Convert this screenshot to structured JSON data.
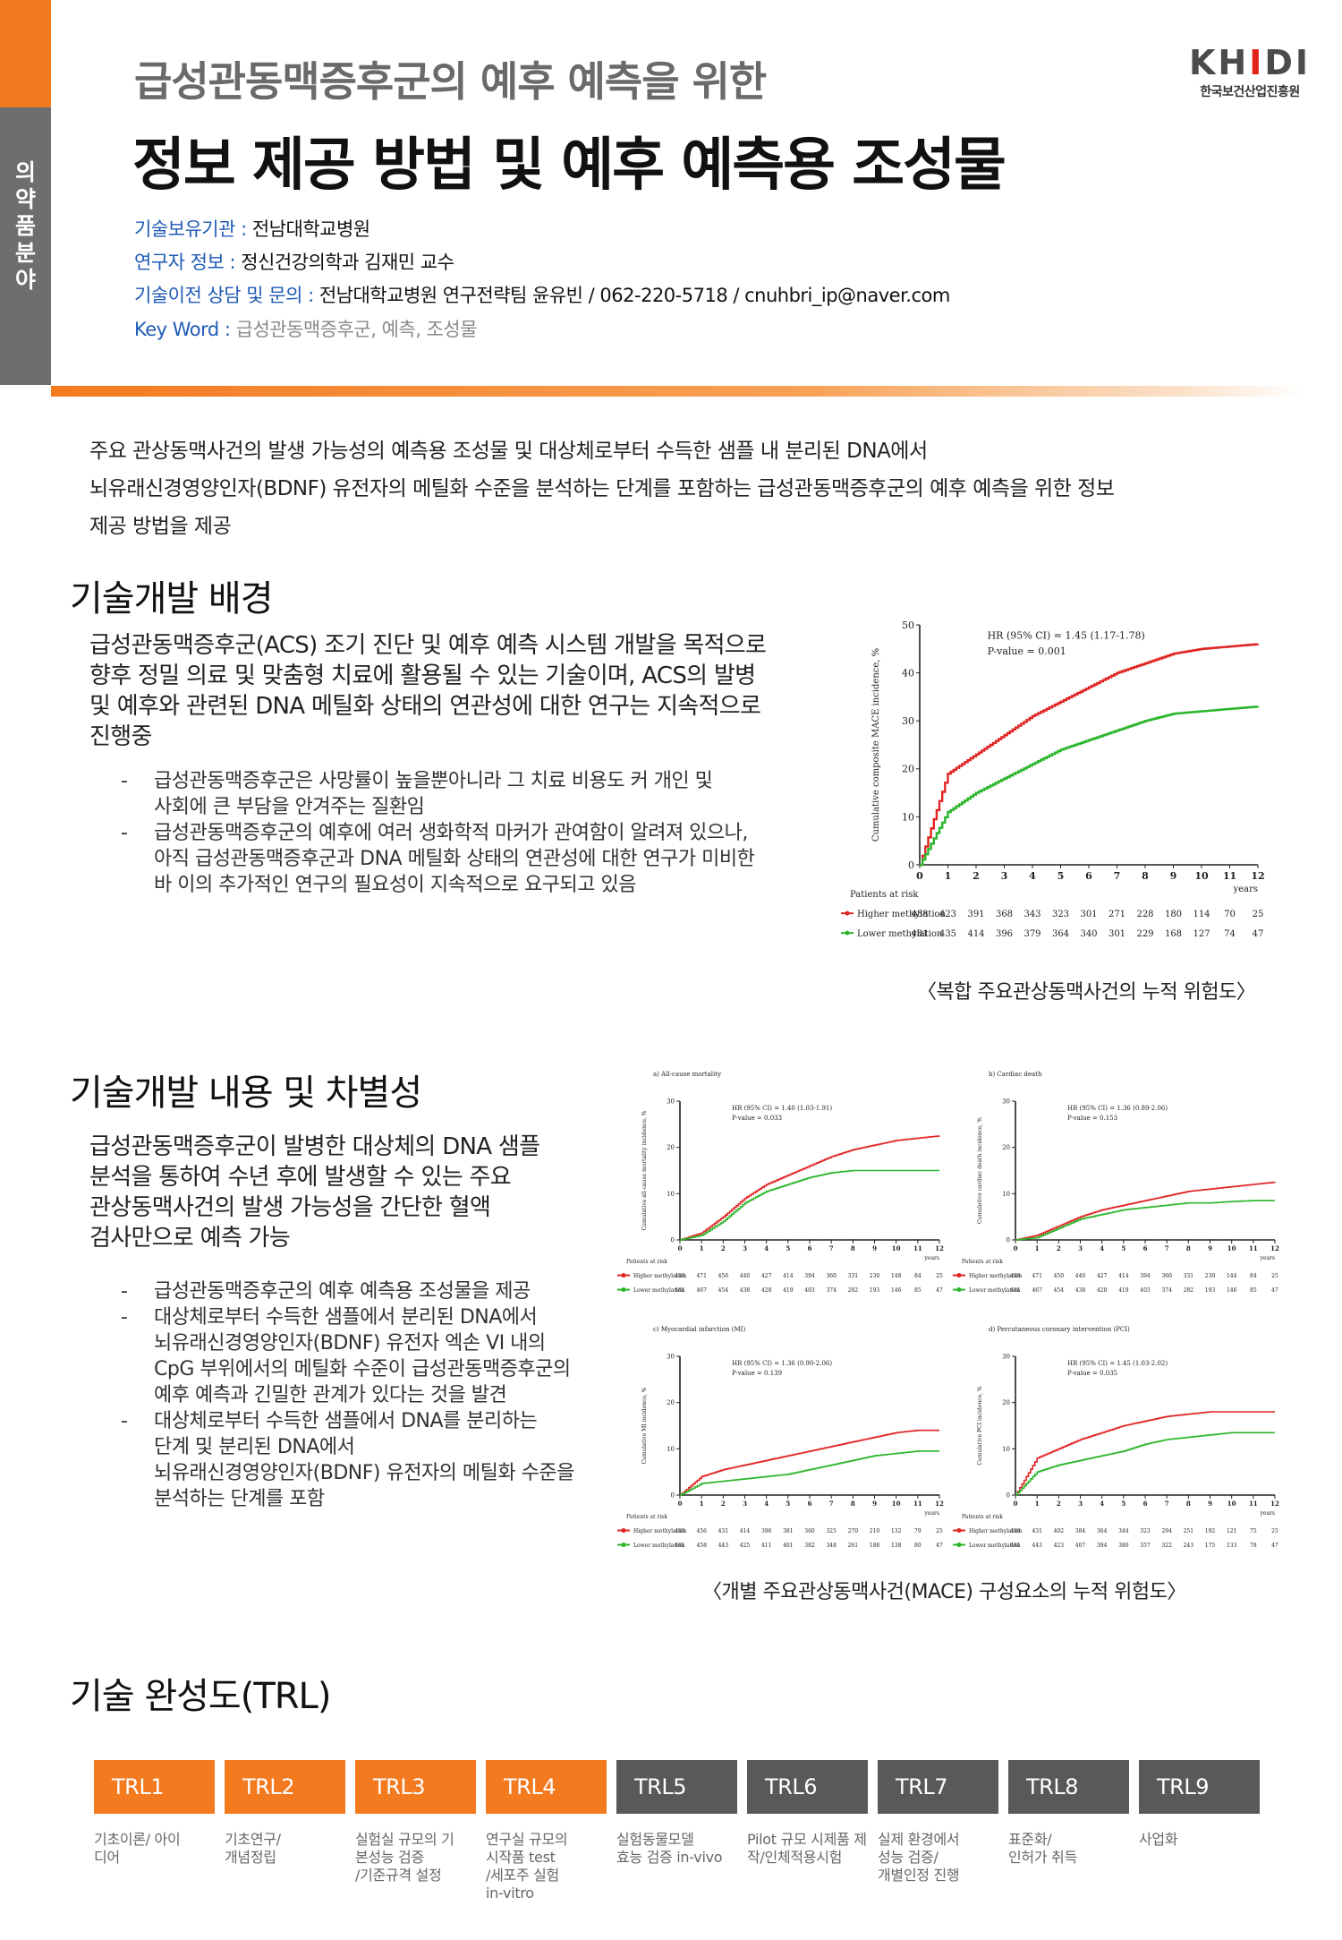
{
  "side_tab": [
    "의",
    "약",
    "품",
    "분",
    "야"
  ],
  "header": {
    "subtitle": "급성관동맥증후군의 예후 예측을 위한",
    "title": "정보 제공 방법 및 예후 예측용 조성물",
    "logo_text": "KHIDI",
    "logo_subtitle": "한국보건산업진흥원"
  },
  "info": {
    "org_label": "기술보유기관 : ",
    "org_value": "전남대학교병원",
    "researcher_label": "연구자 정보 : ",
    "researcher_value": "정신건강의학과 김재민 교수",
    "contact_label": "기술이전 상담 및 문의 : ",
    "contact_value": "전남대학교병원 연구전략팀 윤유빈 /  062-220-5718  / cnuhbri_ip@naver.com",
    "keyword_label": "Key Word : ",
    "keyword_value": "급성관동맥증후군, 예측, 조성물"
  },
  "intro": [
    "주요 관상동맥사건의 발생 가능성의 예측용 조성물 및 대상체로부터 수득한 샘플 내 분리된 DNA에서",
    "뇌유래신경영양인자(BDNF) 유전자의 메틸화 수준을 분석하는 단계를 포함하는 급성관동맥증후군의 예후 예측을 위한 정보",
    "제공 방법을 제공"
  ],
  "section1": {
    "heading": "기술개발 배경",
    "lead": [
      "급성관동맥증후군(ACS) 조기 진단 및 예후 예측 시스템 개발을 목적으로",
      "향후 정밀 의료 및 맞춤형 치료에 활용될 수 있는 기술이며, ACS의 발병",
      "및 예후와 관련된 DNA 메틸화 상태의 연관성에 대한 연구는 지속적으로",
      "진행중"
    ],
    "bullets": [
      [
        "급성관동맥증후군은 사망률이 높을뿐아니라 그 치료 비용도 커 개인 및",
        "사회에 큰 부담을 안겨주는 질환임"
      ],
      [
        "급성관동맥증후군의 예후에 여러 생화학적 마커가 관여함이 알려져 있으나,",
        "아직 급성관동맥증후군과 DNA 메틸화 상태의 연관성에 대한 연구가 미비한",
        "바 이의 추가적인 연구의 필요성이 지속적으로 요구되고 있음"
      ]
    ],
    "caption": "〈복합 주요관상동맥사건의 누적 위험도〉"
  },
  "section2": {
    "heading": "기술개발 내용 및 차별성",
    "lead": [
      "급성관동맥증후군이 발병한 대상체의 DNA 샘플",
      "분석을 통하여 수년 후에 발생할 수 있는 주요",
      "관상동맥사건의 발생 가능성을 간단한 혈액",
      "검사만으로 예측 가능"
    ],
    "bullets": [
      [
        "급성관동맥증후군의 예후 예측용 조성물을 제공"
      ],
      [
        "대상체로부터 수득한 샘플에서 분리된 DNA에서",
        "뇌유래신경영양인자(BDNF) 유전자 엑손 VI 내의",
        "CpG 부위에서의 메틸화 수준이 급성관동맥증후군의",
        "예후 예측과 긴밀한 관계가 있다는 것을 발견"
      ],
      [
        "대상체로부터 수득한 샘플에서 DNA를 분리하는",
        "단계 및 분리된 DNA에서",
        "뇌유래신경영양인자(BDNF) 유전자의 메틸화 수준을",
        "분석하는 단계를 포함"
      ]
    ],
    "caption": "〈개별 주요관상동맥사건(MACE) 구성요소의 누적 위험도〉"
  },
  "section3": {
    "heading": "기술 완성도(TRL)",
    "levels": [
      {
        "label": "TRL1",
        "desc": [
          "기초이론/ 아이",
          "디어"
        ],
        "color": "#f47a20"
      },
      {
        "label": "TRL2",
        "desc": [
          "기초연구/",
          "개념정립"
        ],
        "color": "#f47a20"
      },
      {
        "label": "TRL3",
        "desc": [
          "실험실 규모의 기",
          "본성능 검증",
          "/기준규격 설정"
        ],
        "color": "#f47a20"
      },
      {
        "label": "TRL4",
        "desc": [
          "연구실 규모의",
          "시작품 test",
          "/세포주 실험",
          "in-vitro"
        ],
        "color": "#f47a20"
      },
      {
        "label": "TRL5",
        "desc": [
          "실험동물모델",
          "효능 검증 in-vivo"
        ],
        "color": "#58595b"
      },
      {
        "label": "TRL6",
        "desc": [
          "Pilot 규모 시제품 제",
          "작/인체적용시험"
        ],
        "color": "#58595b"
      },
      {
        "label": "TRL7",
        "desc": [
          "실제 환경에서",
          "성능 검증/",
          "개별인정 진행"
        ],
        "color": "#58595b"
      },
      {
        "label": "TRL8",
        "desc": [
          "표준화/",
          "인허가 취득"
        ],
        "color": "#58595b"
      },
      {
        "label": "TRL9",
        "desc": [
          "사업화"
        ],
        "color": "#58595b"
      }
    ]
  },
  "chart_data": [
    {
      "type": "line",
      "ylabel": "Cumulative composite MACE incidence, %",
      "xlabel": "years",
      "x": [
        0,
        1,
        2,
        3,
        4,
        5,
        6,
        7,
        8,
        9,
        10,
        11,
        12
      ],
      "xlim": [
        0,
        12
      ],
      "ylim": [
        0,
        50
      ],
      "yticks": [
        0,
        10,
        20,
        30,
        40,
        50
      ],
      "annotation": [
        "HR (95% CI) = 1.45 (1.17-1.78)",
        "P-value = 0.001"
      ],
      "risk_title": "Patients at risk",
      "series": [
        {
          "name": "Higher methylation",
          "color": "#e02424",
          "values": [
            0,
            19,
            23,
            27,
            31,
            34,
            37,
            40,
            42,
            44,
            45,
            45.5,
            46
          ],
          "at_risk": [
            "488",
            "423",
            "391",
            "368",
            "343",
            "323",
            "301",
            "271",
            "228",
            "180",
            "114",
            "70",
            "25"
          ]
        },
        {
          "name": "Lower methylation",
          "color": "#2bb52b",
          "values": [
            0,
            11,
            15,
            18,
            21,
            24,
            26,
            28,
            30,
            31.5,
            32,
            32.5,
            33
          ],
          "at_risk": [
            "481",
            "435",
            "414",
            "396",
            "379",
            "364",
            "340",
            "301",
            "229",
            "168",
            "127",
            "74",
            "47"
          ]
        }
      ]
    },
    {
      "type": "line",
      "title": "a) All-cause mortality",
      "ylabel": "Cumulative all-cause mortality incidence, %",
      "xlabel": "years",
      "x": [
        0,
        1,
        2,
        3,
        4,
        5,
        6,
        7,
        8,
        9,
        10,
        11,
        12
      ],
      "ylim": [
        0,
        30
      ],
      "yticks": [
        0,
        10,
        20,
        30
      ],
      "annotation": [
        "HR (95% CI) = 1.40 (1.03-1.91)",
        "P-value = 0.033"
      ],
      "risk_title": "Patients at risk",
      "series": [
        {
          "name": "Higher methylation",
          "color": "#e02424",
          "values": [
            0,
            1.5,
            5,
            9,
            12,
            14,
            16,
            18,
            19.5,
            20.5,
            21.5,
            22,
            22.5
          ],
          "at_risk": [
            "488",
            "471",
            "456",
            "440",
            "427",
            "414",
            "394",
            "360",
            "331",
            "230",
            "148",
            "84",
            "25"
          ]
        },
        {
          "name": "Lower methylation",
          "color": "#2bb52b",
          "values": [
            0,
            1,
            4,
            8,
            10.5,
            12,
            13.5,
            14.5,
            15,
            15,
            15,
            15,
            15
          ],
          "at_risk": [
            "481",
            "467",
            "454",
            "438",
            "428",
            "419",
            "403",
            "374",
            "282",
            "193",
            "146",
            "85",
            "47"
          ]
        }
      ]
    },
    {
      "type": "line",
      "title": "b) Cardiac death",
      "ylabel": "Cumulative cardiac death incidence, %",
      "xlabel": "years",
      "x": [
        0,
        1,
        2,
        3,
        4,
        5,
        6,
        7,
        8,
        9,
        10,
        11,
        12
      ],
      "ylim": [
        0,
        30
      ],
      "yticks": [
        0,
        10,
        20,
        30
      ],
      "annotation": [
        "HR (95% CI) = 1.36 (0.89-2.06)",
        "P-value = 0.153"
      ],
      "risk_title": "Patients at risk",
      "series": [
        {
          "name": "Higher methylation",
          "color": "#e02424",
          "values": [
            0,
            1,
            3,
            5,
            6.5,
            7.5,
            8.5,
            9.5,
            10.5,
            11,
            11.5,
            12,
            12.5
          ],
          "at_risk": [
            "488",
            "471",
            "450",
            "440",
            "427",
            "414",
            "394",
            "360",
            "331",
            "230",
            "144",
            "84",
            "25"
          ]
        },
        {
          "name": "Lower methylation",
          "color": "#2bb52b",
          "values": [
            0,
            0.5,
            2.5,
            4.5,
            5.5,
            6.5,
            7,
            7.5,
            8,
            8,
            8.3,
            8.5,
            8.5
          ],
          "at_risk": [
            "481",
            "467",
            "454",
            "438",
            "428",
            "419",
            "403",
            "374",
            "282",
            "193",
            "146",
            "85",
            "47"
          ]
        }
      ]
    },
    {
      "type": "line",
      "title": "c) Myocardial infarction (MI)",
      "ylabel": "Cumulative MI incidence, %",
      "xlabel": "years",
      "x": [
        0,
        1,
        2,
        3,
        4,
        5,
        6,
        7,
        8,
        9,
        10,
        11,
        12
      ],
      "ylim": [
        0,
        30
      ],
      "yticks": [
        0,
        10,
        20,
        30
      ],
      "annotation": [
        "HR (95% CI) = 1.36 (0.90-2.06)",
        "P-value = 0.139"
      ],
      "risk_title": "Patients at risk",
      "series": [
        {
          "name": "Higher methylation",
          "color": "#e02424",
          "values": [
            0,
            4,
            5.5,
            6.5,
            7.5,
            8.5,
            9.5,
            10.5,
            11.5,
            12.5,
            13.5,
            14,
            14
          ],
          "at_risk": [
            "488",
            "456",
            "431",
            "414",
            "396",
            "381",
            "360",
            "325",
            "270",
            "210",
            "132",
            "79",
            "25"
          ]
        },
        {
          "name": "Lower methylation",
          "color": "#2bb52b",
          "values": [
            0,
            2.5,
            3,
            3.5,
            4,
            4.5,
            5.5,
            6.5,
            7.5,
            8.5,
            9,
            9.5,
            9.5
          ],
          "at_risk": [
            "481",
            "458",
            "443",
            "425",
            "411",
            "401",
            "382",
            "348",
            "261",
            "188",
            "138",
            "80",
            "47"
          ]
        }
      ]
    },
    {
      "type": "line",
      "title": "d) Percutaneous coronary intervention (PCI)",
      "ylabel": "Cumulative PCI incidence, %",
      "xlabel": "years",
      "x": [
        0,
        1,
        2,
        3,
        4,
        5,
        6,
        7,
        8,
        9,
        10,
        11,
        12
      ],
      "ylim": [
        0,
        30
      ],
      "yticks": [
        0,
        10,
        20,
        30
      ],
      "annotation": [
        "HR (95% CI) = 1.45 (1.03-2.02)",
        "P-value = 0.035"
      ],
      "risk_title": "Patients at risk",
      "series": [
        {
          "name": "Higher methylation",
          "color": "#e02424",
          "values": [
            0,
            8,
            10,
            12,
            13.5,
            15,
            16,
            17,
            17.5,
            18,
            18,
            18,
            18
          ],
          "at_risk": [
            "488",
            "431",
            "402",
            "384",
            "364",
            "344",
            "323",
            "294",
            "251",
            "192",
            "121",
            "75",
            "25"
          ]
        },
        {
          "name": "Lower methylation",
          "color": "#2bb52b",
          "values": [
            0,
            5,
            6.5,
            7.5,
            8.5,
            9.5,
            11,
            12,
            12.5,
            13,
            13.5,
            13.5,
            13.5
          ],
          "at_risk": [
            "481",
            "443",
            "423",
            "407",
            "394",
            "380",
            "357",
            "322",
            "243",
            "175",
            "133",
            "78",
            "47"
          ]
        }
      ]
    }
  ]
}
